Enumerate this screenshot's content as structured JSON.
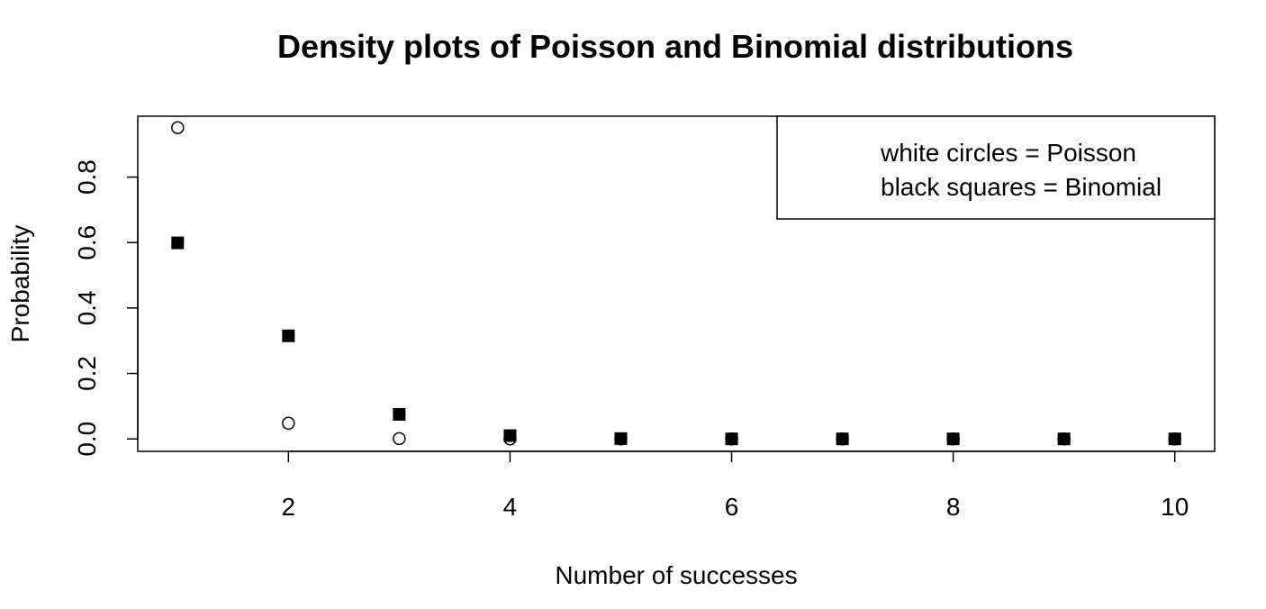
{
  "chart_data": {
    "type": "scatter",
    "title": "Density plots of Poisson and Binomial distributions",
    "xlabel": "Number of successes",
    "ylabel": "Probability",
    "xlim": [
      0.64,
      10.36
    ],
    "ylim": [
      -0.038,
      0.986
    ],
    "x_ticks": [
      2,
      4,
      6,
      8,
      10
    ],
    "x_tick_labels": [
      "2",
      "4",
      "6",
      "8",
      "10"
    ],
    "y_ticks": [
      0.0,
      0.2,
      0.4,
      0.6,
      0.8
    ],
    "y_tick_labels": [
      "0.0",
      "0.2",
      "0.4",
      "0.6",
      "0.8"
    ],
    "grid": false,
    "legend": {
      "placement": "top-right",
      "entries": [
        "white circles = Poisson",
        "black squares = Binomial"
      ]
    },
    "x": [
      1,
      2,
      3,
      4,
      5,
      6,
      7,
      8,
      9,
      10
    ],
    "series": [
      {
        "marker": "open-circle",
        "color": "#000000",
        "values": [
          0.951,
          0.048,
          0.001,
          0.0,
          0.0,
          0.0,
          0.0,
          0.0,
          0.0,
          0.0
        ]
      },
      {
        "marker": "filled-square",
        "color": "#000000",
        "values": [
          0.599,
          0.315,
          0.075,
          0.01,
          0.001,
          0.0,
          0.0,
          0.0,
          0.0,
          0.0
        ]
      }
    ]
  }
}
